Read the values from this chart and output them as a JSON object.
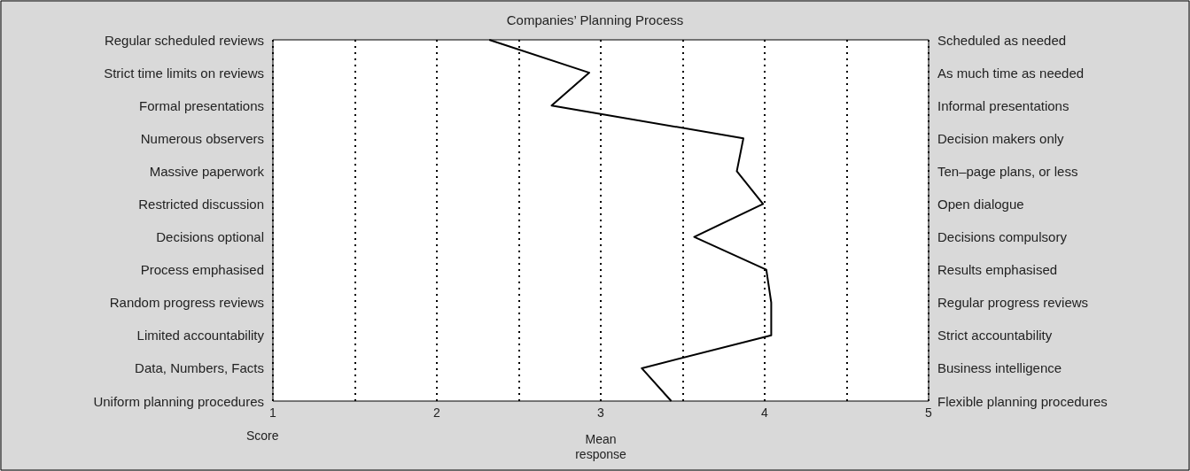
{
  "chart_data": {
    "type": "line",
    "title": "Companies’ Planning Process",
    "orientation": "horizontal",
    "xlabel": "Mean response",
    "annotations": [
      "Score"
    ],
    "categories": [
      "Regular scheduled reviews",
      "Strict time limits on reviews",
      "Formal presentations",
      "Numerous observers",
      "Massive paperwork",
      "Restricted discussion",
      "Decisions optional",
      "Process emphasised",
      "Random progress reviews",
      "Limited accountability",
      "Data, Numbers, Facts",
      "Uniform planning procedures"
    ],
    "y2_categories": [
      "Scheduled as needed",
      "As much time as needed",
      "Informal presentations",
      "Decision makers only",
      "Ten–page plans, or less",
      "Open dialogue",
      "Decisions compulsory",
      "Results emphasised",
      "Regular progress reviews",
      "Strict accountability",
      "Business intelligence",
      "Flexible planning procedures"
    ],
    "series": [
      {
        "color": "#000000",
        "values": [
          2.32,
          2.93,
          2.7,
          3.87,
          3.83,
          3.99,
          3.57,
          4.01,
          4.04,
          4.04,
          3.25,
          3.43
        ]
      }
    ],
    "xlim": [
      1,
      5
    ],
    "xticks": [
      1,
      {
        "value": 1.5,
        "label": null
      },
      2,
      {
        "value": 2.5,
        "label": null
      },
      3,
      {
        "value": 3.5,
        "label": null
      },
      4,
      {
        "value": 4.5,
        "label": null
      },
      5
    ],
    "grid": "x",
    "marker": "none",
    "line_style": "solid"
  }
}
